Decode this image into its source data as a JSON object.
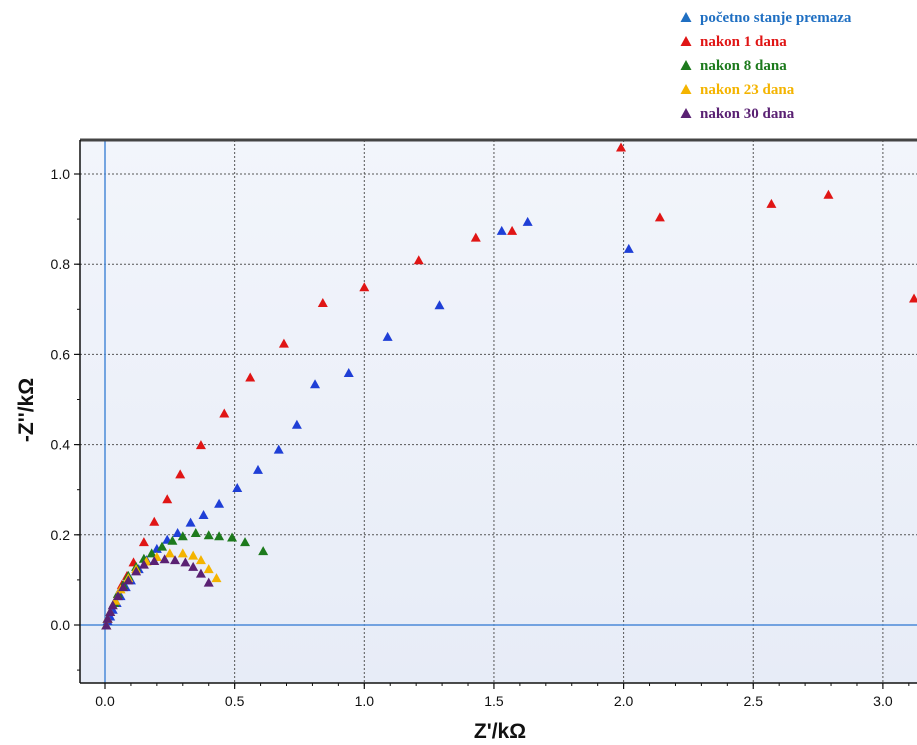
{
  "chart_data": {
    "type": "scatter",
    "xlabel": "Z'/kΩ",
    "ylabel": "-Z''/kΩ",
    "xlim": [
      -0.1,
      3.12
    ],
    "ylim": [
      -0.12,
      1.07
    ],
    "x_ticks": [
      "0.0",
      "0.5",
      "1.0",
      "1.5",
      "2.0",
      "2.5",
      "3.0"
    ],
    "y_ticks": [
      "0.0",
      "0.2",
      "0.4",
      "0.6",
      "0.8",
      "1.0"
    ],
    "x_tick_values": [
      0,
      0.5,
      1.0,
      1.5,
      2.0,
      2.5,
      3.0
    ],
    "y_tick_values": [
      0,
      0.2,
      0.4,
      0.6,
      0.8,
      1.0
    ],
    "grid": true,
    "legend_position": "top-right, above plot",
    "background": "#e7ecf7",
    "series": [
      {
        "name": "početno stanje premaza",
        "color": "#1f3fd6",
        "legend_color": "#1f6fc2",
        "points": [
          [
            0.005,
            0.0
          ],
          [
            0.01,
            0.01
          ],
          [
            0.02,
            0.02
          ],
          [
            0.03,
            0.035
          ],
          [
            0.045,
            0.05
          ],
          [
            0.06,
            0.065
          ],
          [
            0.08,
            0.085
          ],
          [
            0.1,
            0.1
          ],
          [
            0.13,
            0.125
          ],
          [
            0.16,
            0.145
          ],
          [
            0.2,
            0.17
          ],
          [
            0.24,
            0.19
          ],
          [
            0.28,
            0.205
          ],
          [
            0.33,
            0.228
          ],
          [
            0.38,
            0.245
          ],
          [
            0.44,
            0.27
          ],
          [
            0.51,
            0.305
          ],
          [
            0.59,
            0.345
          ],
          [
            0.67,
            0.39
          ],
          [
            0.74,
            0.445
          ],
          [
            0.81,
            0.535
          ],
          [
            0.94,
            0.56
          ],
          [
            1.09,
            0.64
          ],
          [
            1.29,
            0.71
          ],
          [
            1.53,
            0.875
          ],
          [
            1.63,
            0.895
          ],
          [
            2.02,
            0.835
          ]
        ]
      },
      {
        "name": "nakon 1 dana",
        "color": "#e01515",
        "legend_color": "#e01515",
        "points": [
          [
            0.005,
            0.0
          ],
          [
            0.01,
            0.015
          ],
          [
            0.02,
            0.03
          ],
          [
            0.035,
            0.05
          ],
          [
            0.05,
            0.07
          ],
          [
            0.065,
            0.09
          ],
          [
            0.085,
            0.11
          ],
          [
            0.11,
            0.14
          ],
          [
            0.15,
            0.185
          ],
          [
            0.19,
            0.23
          ],
          [
            0.24,
            0.28
          ],
          [
            0.29,
            0.335
          ],
          [
            0.37,
            0.4
          ],
          [
            0.46,
            0.47
          ],
          [
            0.56,
            0.55
          ],
          [
            0.69,
            0.625
          ],
          [
            0.84,
            0.715
          ],
          [
            1.0,
            0.75
          ],
          [
            1.21,
            0.81
          ],
          [
            1.43,
            0.86
          ],
          [
            1.57,
            0.875
          ],
          [
            1.99,
            1.06
          ],
          [
            2.14,
            0.905
          ],
          [
            2.57,
            0.935
          ],
          [
            2.79,
            0.955
          ],
          [
            3.12,
            0.725
          ]
        ]
      },
      {
        "name": "nakon 8 dana",
        "color": "#1d7a1d",
        "legend_color": "#1d7a1d",
        "points": [
          [
            0.005,
            0.0
          ],
          [
            0.01,
            0.015
          ],
          [
            0.02,
            0.03
          ],
          [
            0.035,
            0.05
          ],
          [
            0.05,
            0.07
          ],
          [
            0.07,
            0.09
          ],
          [
            0.09,
            0.11
          ],
          [
            0.12,
            0.13
          ],
          [
            0.15,
            0.148
          ],
          [
            0.18,
            0.16
          ],
          [
            0.22,
            0.175
          ],
          [
            0.26,
            0.188
          ],
          [
            0.3,
            0.198
          ],
          [
            0.35,
            0.205
          ],
          [
            0.4,
            0.2
          ],
          [
            0.44,
            0.198
          ],
          [
            0.49,
            0.195
          ],
          [
            0.54,
            0.185
          ],
          [
            0.61,
            0.165
          ]
        ]
      },
      {
        "name": "nakon 23 dana",
        "color": "#f4b400",
        "legend_color": "#f4b400",
        "points": [
          [
            0.005,
            0.0
          ],
          [
            0.01,
            0.015
          ],
          [
            0.02,
            0.03
          ],
          [
            0.04,
            0.055
          ],
          [
            0.06,
            0.08
          ],
          [
            0.09,
            0.105
          ],
          [
            0.12,
            0.125
          ],
          [
            0.16,
            0.142
          ],
          [
            0.2,
            0.152
          ],
          [
            0.25,
            0.16
          ],
          [
            0.3,
            0.16
          ],
          [
            0.34,
            0.155
          ],
          [
            0.37,
            0.145
          ],
          [
            0.4,
            0.125
          ],
          [
            0.43,
            0.105
          ]
        ]
      },
      {
        "name": "nakon 30 dana",
        "color": "#5a2173",
        "legend_color": "#5a2173",
        "points": [
          [
            0.005,
            0.0
          ],
          [
            0.01,
            0.015
          ],
          [
            0.02,
            0.03
          ],
          [
            0.03,
            0.045
          ],
          [
            0.05,
            0.065
          ],
          [
            0.07,
            0.085
          ],
          [
            0.09,
            0.1
          ],
          [
            0.12,
            0.12
          ],
          [
            0.15,
            0.135
          ],
          [
            0.19,
            0.143
          ],
          [
            0.23,
            0.147
          ],
          [
            0.27,
            0.145
          ],
          [
            0.31,
            0.14
          ],
          [
            0.34,
            0.13
          ],
          [
            0.37,
            0.115
          ],
          [
            0.4,
            0.095
          ]
        ]
      }
    ]
  }
}
